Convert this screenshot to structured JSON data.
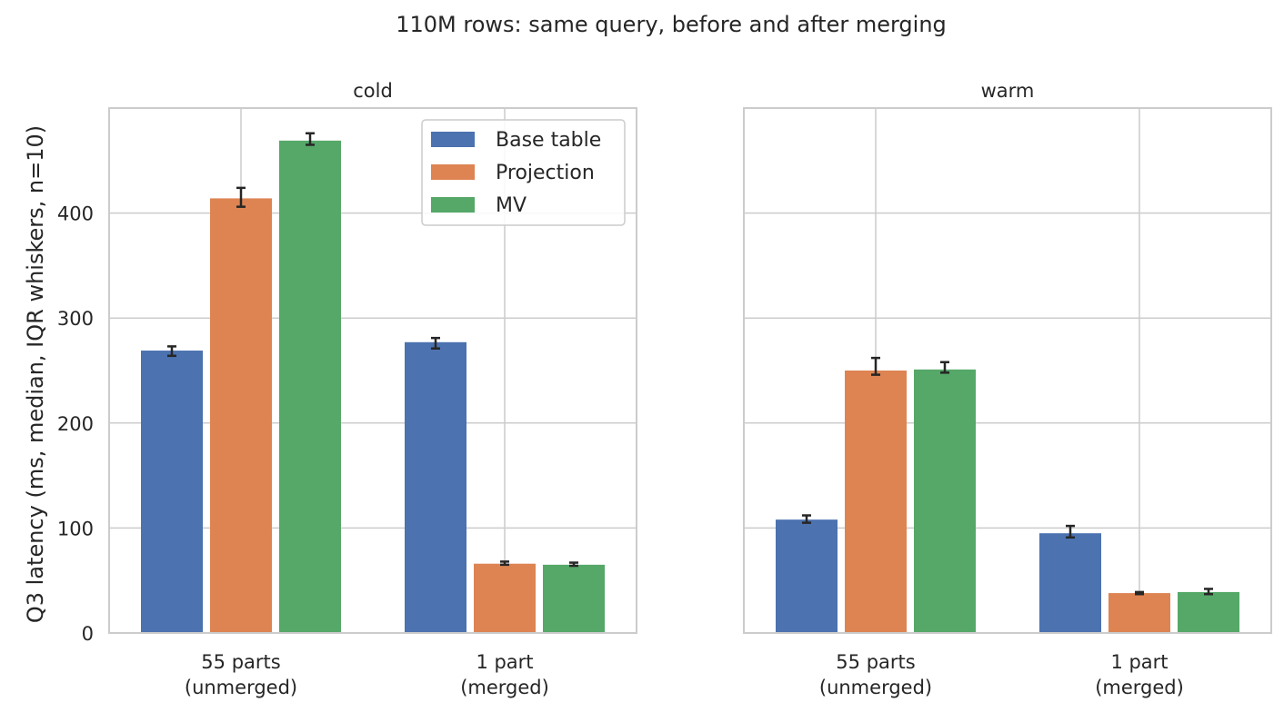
{
  "figure_title": "110M rows: same query, before and after merging",
  "ylabel": "Q3 latency (ms, median, IQR whiskers, n=10)",
  "legend": [
    "Base table",
    "Projection",
    "MV"
  ],
  "chart_data": [
    {
      "type": "bar",
      "title": "cold",
      "categories": [
        [
          "55 parts",
          "(unmerged)"
        ],
        [
          "1 part",
          "(merged)"
        ]
      ],
      "ylim": [
        0,
        500
      ],
      "yticks": [
        0,
        100,
        200,
        300,
        400
      ],
      "grid": true,
      "legend_position": "top-right",
      "series": [
        {
          "name": "Base table",
          "color": "#4c72b0",
          "values": [
            269,
            277
          ],
          "iqr": [
            [
              264,
              273
            ],
            [
              271,
              281
            ]
          ]
        },
        {
          "name": "Projection",
          "color": "#dd8452",
          "values": [
            414,
            66
          ],
          "iqr": [
            [
              406,
              424
            ],
            [
              65,
              68
            ]
          ]
        },
        {
          "name": "MV",
          "color": "#55a868",
          "values": [
            469,
            65
          ],
          "iqr": [
            [
              465,
              476
            ],
            [
              64,
              67
            ]
          ]
        }
      ]
    },
    {
      "type": "bar",
      "title": "warm",
      "categories": [
        [
          "55 parts",
          "(unmerged)"
        ],
        [
          "1 part",
          "(merged)"
        ]
      ],
      "ylim": [
        0,
        500
      ],
      "yticks": [
        0,
        100,
        200,
        300,
        400
      ],
      "grid": true,
      "series": [
        {
          "name": "Base table",
          "color": "#4c72b0",
          "values": [
            108,
            95
          ],
          "iqr": [
            [
              105,
              112
            ],
            [
              91,
              102
            ]
          ]
        },
        {
          "name": "Projection",
          "color": "#dd8452",
          "values": [
            250,
            38
          ],
          "iqr": [
            [
              246,
              262
            ],
            [
              37,
              39
            ]
          ]
        },
        {
          "name": "MV",
          "color": "#55a868",
          "values": [
            251,
            39
          ],
          "iqr": [
            [
              248,
              258
            ],
            [
              37,
              42
            ]
          ]
        }
      ]
    }
  ]
}
